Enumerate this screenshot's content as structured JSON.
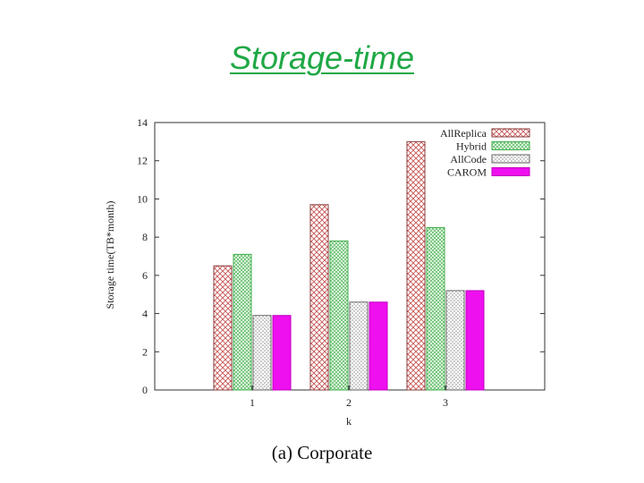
{
  "slide": {
    "title": "Storage-time"
  },
  "caption": "(a)  Corporate",
  "colors": {
    "title": "#1fa845",
    "AllReplica": "#c44e4e",
    "Hybrid": "#3fae4a",
    "AllCode": "#7a7a7a",
    "CAROM": "#ee10ee"
  },
  "chart_data": {
    "type": "bar",
    "categories": [
      "1",
      "2",
      "3"
    ],
    "xlabel": "k",
    "ylabel": "Storage time(TB*month)",
    "ylim": [
      0,
      14
    ],
    "yticks": [
      0,
      2,
      4,
      6,
      8,
      10,
      12,
      14
    ],
    "legend_position": "top-right",
    "grid": false,
    "series": [
      {
        "name": "AllReplica",
        "values": [
          6.5,
          9.7,
          13.0
        ]
      },
      {
        "name": "Hybrid",
        "values": [
          7.1,
          7.8,
          8.5
        ]
      },
      {
        "name": "AllCode",
        "values": [
          3.9,
          4.6,
          5.2
        ]
      },
      {
        "name": "CAROM",
        "values": [
          3.9,
          4.6,
          5.2
        ]
      }
    ]
  }
}
